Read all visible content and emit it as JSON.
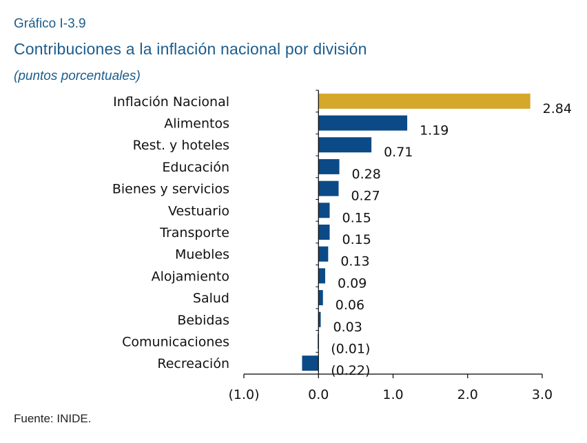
{
  "header": {
    "kicker": "Gráfico I-3.9",
    "title": "Contribuciones a la inflación nacional por división",
    "subtitle": "(puntos porcentuales)"
  },
  "footer": {
    "source": "Fuente: INIDE."
  },
  "colors": {
    "highlight": "#d5a82b",
    "bar": "#0b4a86",
    "axis": "#000000"
  },
  "chart_data": {
    "type": "bar",
    "orientation": "horizontal",
    "categories": [
      "Inflación Nacional",
      "Alimentos",
      "Rest. y hoteles",
      "Educación",
      "Bienes y servicios",
      "Vestuario",
      "Transporte",
      "Muebles",
      "Alojamiento",
      "Salud",
      "Bebidas",
      "Comunicaciones",
      "Recreación"
    ],
    "values": [
      2.84,
      1.19,
      0.71,
      0.28,
      0.27,
      0.15,
      0.15,
      0.13,
      0.09,
      0.06,
      0.03,
      -0.01,
      -0.22
    ],
    "data_labels": [
      "2.84",
      "1.19",
      "0.71",
      "0.28",
      "0.27",
      "0.15",
      "0.15",
      "0.13",
      "0.09",
      "0.06",
      "0.03",
      "(0.01)",
      "(0.22)"
    ],
    "highlight_index": 0,
    "xlim": [
      -1.0,
      3.0
    ],
    "xticks": [
      -1.0,
      0.0,
      1.0,
      2.0,
      3.0
    ],
    "xtick_labels": [
      "(1.0)",
      "0.0",
      "1.0",
      "2.0",
      "3.0"
    ],
    "grid": false,
    "legend": "none"
  }
}
